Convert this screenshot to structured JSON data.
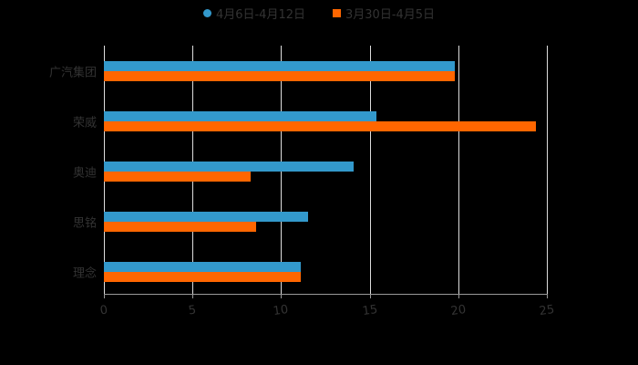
{
  "chart_data": {
    "type": "bar",
    "orientation": "horizontal",
    "title": "",
    "xlabel": "",
    "ylabel": "",
    "categories": [
      "广汽集团",
      "荣威",
      "奥迪",
      "思铭",
      "理念"
    ],
    "series": [
      {
        "name": "4月6日-4月12日",
        "color": "#3399CC",
        "values": [
          19.8,
          15.4,
          14.1,
          11.5,
          11.1
        ]
      },
      {
        "name": "3月30日-4月5日",
        "color": "#FF6600",
        "values": [
          19.8,
          24.4,
          8.3,
          8.6,
          11.1
        ]
      }
    ],
    "xlim": [
      0,
      25
    ],
    "xticks": [
      "0",
      "5",
      "10",
      "15",
      "20",
      "25"
    ],
    "grid": true,
    "legend_position": "top"
  },
  "legend": [
    {
      "label": "4月6日-4月12日",
      "color": "#3399CC",
      "marker": "circle"
    },
    {
      "label": "3月30日-4月5日",
      "color": "#FF6600",
      "marker": "square"
    }
  ]
}
